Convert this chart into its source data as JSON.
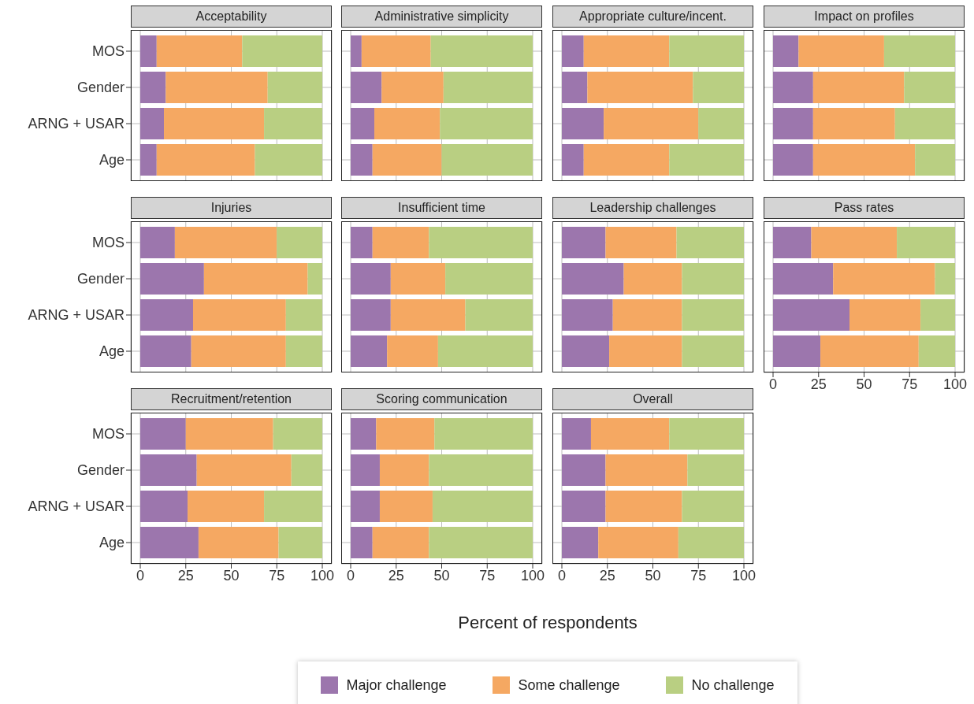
{
  "chart_data": [
    {
      "type": "bar",
      "title": "Acceptability",
      "orientation": "horizontal",
      "stacked": true,
      "grid": true,
      "tick_labels": "y",
      "legend": "bottom",
      "categories": [
        "MOS",
        "Gender",
        "ARNG + USAR",
        "Age"
      ],
      "xlim": [
        0,
        100
      ],
      "xticks": [
        0,
        25,
        50,
        75,
        100
      ],
      "series": [
        {
          "name": "Major challenge",
          "color": "#9c76ad",
          "values": [
            9,
            14,
            13,
            9
          ]
        },
        {
          "name": "Some challenge",
          "color": "#f5a862",
          "values": [
            47,
            56,
            55,
            54
          ]
        },
        {
          "name": "No challenge",
          "color": "#b9cf82",
          "values": [
            44,
            30,
            32,
            37
          ]
        }
      ]
    },
    {
      "type": "bar",
      "title": "Administrative simplicity",
      "orientation": "horizontal",
      "stacked": true,
      "grid": true,
      "tick_labels": false,
      "categories": [
        "MOS",
        "Gender",
        "ARNG + USAR",
        "Age"
      ],
      "xlim": [
        0,
        100
      ],
      "xticks": [
        0,
        25,
        50,
        75,
        100
      ],
      "series": [
        {
          "name": "Major challenge",
          "color": "#9c76ad",
          "values": [
            6,
            17,
            13,
            12
          ]
        },
        {
          "name": "Some challenge",
          "color": "#f5a862",
          "values": [
            38,
            34,
            36,
            38
          ]
        },
        {
          "name": "No challenge",
          "color": "#b9cf82",
          "values": [
            56,
            49,
            51,
            50
          ]
        }
      ]
    },
    {
      "type": "bar",
      "title": "Appropriate culture/incent.",
      "orientation": "horizontal",
      "stacked": true,
      "grid": true,
      "tick_labels": false,
      "categories": [
        "MOS",
        "Gender",
        "ARNG + USAR",
        "Age"
      ],
      "xlim": [
        0,
        100
      ],
      "xticks": [
        0,
        25,
        50,
        75,
        100
      ],
      "series": [
        {
          "name": "Major challenge",
          "color": "#9c76ad",
          "values": [
            12,
            14,
            23,
            12
          ]
        },
        {
          "name": "Some challenge",
          "color": "#f5a862",
          "values": [
            47,
            58,
            52,
            47
          ]
        },
        {
          "name": "No challenge",
          "color": "#b9cf82",
          "values": [
            41,
            28,
            25,
            41
          ]
        }
      ]
    },
    {
      "type": "bar",
      "title": "Impact on profiles",
      "orientation": "horizontal",
      "stacked": true,
      "grid": true,
      "tick_labels": false,
      "categories": [
        "MOS",
        "Gender",
        "ARNG + USAR",
        "Age"
      ],
      "xlim": [
        0,
        100
      ],
      "xticks": [
        0,
        25,
        50,
        75,
        100
      ],
      "series": [
        {
          "name": "Major challenge",
          "color": "#9c76ad",
          "values": [
            14,
            22,
            22,
            22
          ]
        },
        {
          "name": "Some challenge",
          "color": "#f5a862",
          "values": [
            47,
            50,
            45,
            56
          ]
        },
        {
          "name": "No challenge",
          "color": "#b9cf82",
          "values": [
            39,
            28,
            33,
            22
          ]
        }
      ]
    },
    {
      "type": "bar",
      "title": "Injuries",
      "orientation": "horizontal",
      "stacked": true,
      "grid": true,
      "tick_labels": "y",
      "categories": [
        "MOS",
        "Gender",
        "ARNG + USAR",
        "Age"
      ],
      "xlim": [
        0,
        100
      ],
      "xticks": [
        0,
        25,
        50,
        75,
        100
      ],
      "series": [
        {
          "name": "Major challenge",
          "color": "#9c76ad",
          "values": [
            19,
            35,
            29,
            28
          ]
        },
        {
          "name": "Some challenge",
          "color": "#f5a862",
          "values": [
            56,
            57,
            51,
            52
          ]
        },
        {
          "name": "No challenge",
          "color": "#b9cf82",
          "values": [
            25,
            8,
            20,
            20
          ]
        }
      ]
    },
    {
      "type": "bar",
      "title": "Insufficient time",
      "orientation": "horizontal",
      "stacked": true,
      "grid": true,
      "tick_labels": false,
      "categories": [
        "MOS",
        "Gender",
        "ARNG + USAR",
        "Age"
      ],
      "xlim": [
        0,
        100
      ],
      "xticks": [
        0,
        25,
        50,
        75,
        100
      ],
      "series": [
        {
          "name": "Major challenge",
          "color": "#9c76ad",
          "values": [
            12,
            22,
            22,
            20
          ]
        },
        {
          "name": "Some challenge",
          "color": "#f5a862",
          "values": [
            31,
            30,
            41,
            28
          ]
        },
        {
          "name": "No challenge",
          "color": "#b9cf82",
          "values": [
            57,
            48,
            37,
            52
          ]
        }
      ]
    },
    {
      "type": "bar",
      "title": "Leadership challenges",
      "orientation": "horizontal",
      "stacked": true,
      "grid": true,
      "tick_labels": false,
      "categories": [
        "MOS",
        "Gender",
        "ARNG + USAR",
        "Age"
      ],
      "xlim": [
        0,
        100
      ],
      "xticks": [
        0,
        25,
        50,
        75,
        100
      ],
      "series": [
        {
          "name": "Major challenge",
          "color": "#9c76ad",
          "values": [
            24,
            34,
            28,
            26
          ]
        },
        {
          "name": "Some challenge",
          "color": "#f5a862",
          "values": [
            39,
            32,
            38,
            40
          ]
        },
        {
          "name": "No challenge",
          "color": "#b9cf82",
          "values": [
            37,
            34,
            34,
            34
          ]
        }
      ]
    },
    {
      "type": "bar",
      "title": "Pass rates",
      "orientation": "horizontal",
      "stacked": true,
      "grid": true,
      "tick_labels": "x",
      "categories": [
        "MOS",
        "Gender",
        "ARNG + USAR",
        "Age"
      ],
      "xlim": [
        0,
        100
      ],
      "xticks": [
        0,
        25,
        50,
        75,
        100
      ],
      "series": [
        {
          "name": "Major challenge",
          "color": "#9c76ad",
          "values": [
            21,
            33,
            42,
            26
          ]
        },
        {
          "name": "Some challenge",
          "color": "#f5a862",
          "values": [
            47,
            56,
            39,
            54
          ]
        },
        {
          "name": "No challenge",
          "color": "#b9cf82",
          "values": [
            32,
            11,
            19,
            20
          ]
        }
      ]
    },
    {
      "type": "bar",
      "title": "Recruitment/retention",
      "orientation": "horizontal",
      "stacked": true,
      "grid": true,
      "categories": [
        "MOS",
        "Gender",
        "ARNG + USAR",
        "Age"
      ],
      "xlim": [
        0,
        100
      ],
      "xticks": [
        0,
        25,
        50,
        75,
        100
      ],
      "series": [
        {
          "name": "Major challenge",
          "color": "#9c76ad",
          "values": [
            25,
            31,
            26,
            32
          ]
        },
        {
          "name": "Some challenge",
          "color": "#f5a862",
          "values": [
            48,
            52,
            42,
            44
          ]
        },
        {
          "name": "No challenge",
          "color": "#b9cf82",
          "values": [
            27,
            17,
            32,
            24
          ]
        }
      ]
    },
    {
      "type": "bar",
      "title": "Scoring communication",
      "orientation": "horizontal",
      "stacked": true,
      "grid": true,
      "tick_labels": "x",
      "xlabel": "Percent of respondents",
      "categories": [
        "MOS",
        "Gender",
        "ARNG + USAR",
        "Age"
      ],
      "xlim": [
        0,
        100
      ],
      "xticks": [
        0,
        25,
        50,
        75,
        100
      ],
      "series": [
        {
          "name": "Major challenge",
          "color": "#9c76ad",
          "values": [
            14,
            16,
            16,
            12
          ]
        },
        {
          "name": "Some challenge",
          "color": "#f5a862",
          "values": [
            32,
            27,
            29,
            31
          ]
        },
        {
          "name": "No challenge",
          "color": "#b9cf82",
          "values": [
            54,
            57,
            55,
            57
          ]
        }
      ]
    },
    {
      "type": "bar",
      "title": "Overall",
      "orientation": "horizontal",
      "stacked": true,
      "grid": true,
      "tick_labels": "x",
      "categories": [
        "MOS",
        "Gender",
        "ARNG + USAR",
        "Age"
      ],
      "xlim": [
        0,
        100
      ],
      "xticks": [
        0,
        25,
        50,
        75,
        100
      ],
      "series": [
        {
          "name": "Major challenge",
          "color": "#9c76ad",
          "values": [
            16,
            24,
            24,
            20
          ]
        },
        {
          "name": "Some challenge",
          "color": "#f5a862",
          "values": [
            43,
            45,
            42,
            44
          ]
        },
        {
          "name": "No challenge",
          "color": "#b9cf82",
          "values": [
            41,
            31,
            34,
            36
          ]
        }
      ]
    }
  ]
}
